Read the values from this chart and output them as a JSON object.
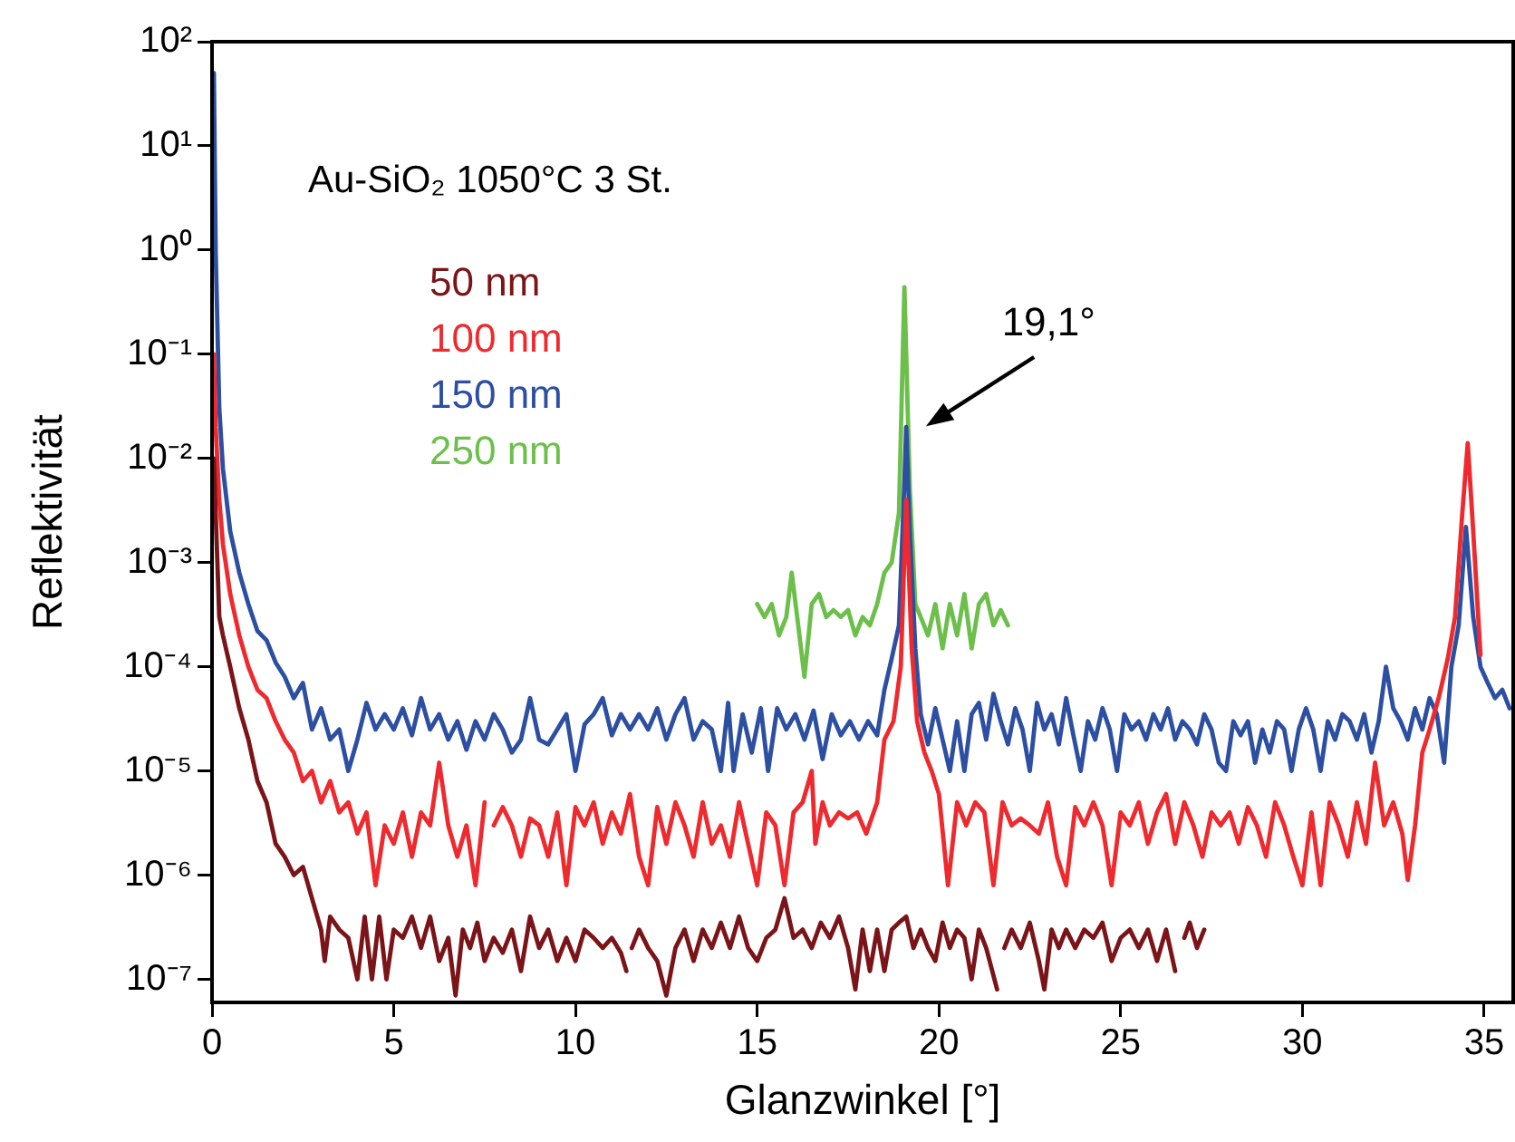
{
  "chart_data": {
    "type": "line",
    "title": "Au-SiO₂ 1050°C 3 St.",
    "xlabel": "Glanzwinkel [°]",
    "ylabel": "Reflektivität",
    "log": "y",
    "grid": false,
    "legend": "top left",
    "marker": "none",
    "line_style": "solid",
    "xlim": [
      0,
      35.8
    ],
    "xticks": [
      0,
      5,
      10,
      15,
      20,
      25,
      30,
      35
    ],
    "ylim": [
      6.4e-08,
      100
    ],
    "yticks": [
      {
        "value": 1e-07,
        "label": "10⁻⁷"
      },
      {
        "value": 1e-06,
        "label": "10⁻⁶"
      },
      {
        "value": 1e-05,
        "label": "10⁻⁵"
      },
      {
        "value": 0.0001,
        "label": "10⁻⁴"
      },
      {
        "value": 0.001,
        "label": "10⁻³"
      },
      {
        "value": 0.01,
        "label": "10⁻²"
      },
      {
        "value": 0.1,
        "label": "10⁻¹"
      },
      {
        "value": 1,
        "label": "10⁰"
      },
      {
        "value": 10,
        "label": "10¹"
      },
      {
        "value": 100,
        "label": "10²"
      }
    ],
    "annotations": [
      "19,1°"
    ],
    "series": [
      {
        "name": "50 nm",
        "color": "#7a1418",
        "x": [
          0.05,
          0.1,
          0.2,
          0.3,
          0.5,
          0.75,
          1,
          1.25,
          1.5,
          1.75,
          2,
          2.25,
          2.5,
          2.75,
          3,
          3.1,
          3.25,
          3.5,
          3.75,
          4,
          4.2,
          4.4,
          4.6,
          4.8,
          5,
          5.25,
          5.5,
          5.75,
          6,
          6.25,
          6.5,
          6.7,
          6.9,
          7.1,
          7.3,
          7.5,
          7.75,
          8,
          8.25,
          8.5,
          8.75,
          9,
          9.25,
          9.5,
          9.75,
          10,
          10.25,
          10.5,
          10.75,
          11,
          11.25,
          11.4,
          11.45,
          11.55,
          11.75,
          12,
          12.25,
          12.5,
          12.75,
          13,
          13.25,
          13.5,
          13.75,
          14,
          14.25,
          14.5,
          14.75,
          15,
          15.25,
          15.5,
          15.75,
          16,
          16.25,
          16.5,
          16.75,
          17,
          17.25,
          17.5,
          17.7,
          17.9,
          18.1,
          18.3,
          18.5,
          18.7,
          18.9,
          19.1,
          19.3,
          19.5,
          19.7,
          19.9,
          20.1,
          20.3,
          20.5,
          20.7,
          20.9,
          21.1,
          21.3,
          21.6,
          21.7,
          21.8,
          22,
          22.25,
          22.5,
          22.75,
          22.9,
          23.1,
          23.3,
          23.5,
          23.75,
          24,
          24.25,
          24.5,
          24.75,
          25,
          25.25,
          25.5,
          25.75,
          26,
          26.25,
          26.5,
          26.6,
          26.75,
          26.9,
          27.1,
          27.3
        ],
        "values": [
          0.01,
          0.003,
          0.0003,
          0.0002,
          0.0001,
          4e-05,
          2e-05,
          8e-06,
          5e-06,
          2e-06,
          1.5e-06,
          1e-06,
          1.2e-06,
          6e-07,
          3e-07,
          1.5e-07,
          4e-07,
          3e-07,
          2.5e-07,
          1e-07,
          4e-07,
          1e-07,
          4e-07,
          1e-07,
          3e-07,
          2.5e-07,
          4e-07,
          2e-07,
          4e-07,
          1.5e-07,
          2.5e-07,
          7e-08,
          3e-07,
          2e-07,
          3.5e-07,
          1.5e-07,
          2.5e-07,
          1.8e-07,
          3e-07,
          1.2e-07,
          4e-07,
          2e-07,
          3e-07,
          1.5e-07,
          2.5e-07,
          1.5e-07,
          3e-07,
          2.5e-07,
          2e-07,
          2.5e-07,
          1.8e-07,
          1.2e-07,
          null,
          2e-07,
          3e-07,
          2e-07,
          1.5e-07,
          7e-08,
          2e-07,
          3e-07,
          1.5e-07,
          3e-07,
          2e-07,
          3.5e-07,
          2e-07,
          4e-07,
          2e-07,
          1.5e-07,
          2.5e-07,
          3e-07,
          6e-07,
          2.5e-07,
          3e-07,
          2e-07,
          3.5e-07,
          2.5e-07,
          4e-07,
          2e-07,
          8e-08,
          3e-07,
          1.2e-07,
          3e-07,
          1.2e-07,
          3e-07,
          3.5e-07,
          4e-07,
          2e-07,
          3e-07,
          2e-07,
          1.5e-07,
          3.5e-07,
          2e-07,
          3e-07,
          2.5e-07,
          1e-07,
          3e-07,
          2e-07,
          8e-08,
          null,
          2e-07,
          3e-07,
          2e-07,
          3.5e-07,
          1.5e-07,
          8e-08,
          3e-07,
          2e-07,
          3e-07,
          2e-07,
          3e-07,
          2.5e-07,
          3.5e-07,
          1.5e-07,
          2.5e-07,
          3e-07,
          2e-07,
          3e-07,
          1.5e-07,
          3e-07,
          1.2e-07,
          null,
          2.5e-07,
          3.5e-07,
          2e-07,
          3e-07
        ]
      },
      {
        "name": "100 nm",
        "color": "#ee2a2e",
        "x": [
          0.05,
          0.1,
          0.2,
          0.3,
          0.5,
          0.75,
          1,
          1.25,
          1.5,
          1.75,
          2,
          2.25,
          2.5,
          2.75,
          3,
          3.25,
          3.5,
          3.75,
          4,
          4.25,
          4.5,
          4.75,
          5,
          5.25,
          5.5,
          5.75,
          6,
          6.25,
          6.5,
          6.75,
          7,
          7.25,
          7.5,
          7.6,
          7.75,
          8,
          8.25,
          8.5,
          8.75,
          9,
          9.25,
          9.5,
          9.75,
          10,
          10.25,
          10.5,
          10.75,
          11,
          11.25,
          11.5,
          11.75,
          12,
          12.25,
          12.5,
          12.75,
          13,
          13.25,
          13.5,
          13.75,
          14,
          14.25,
          14.5,
          14.75,
          15,
          15.25,
          15.5,
          15.75,
          16,
          16.25,
          16.5,
          16.6,
          16.8,
          17,
          17.25,
          17.5,
          17.75,
          18,
          18.3,
          18.5,
          18.75,
          18.95,
          19.1,
          19.25,
          19.4,
          19.6,
          19.8,
          20,
          20.25,
          20.5,
          20.75,
          21,
          21.25,
          21.5,
          21.75,
          22,
          22.25,
          22.5,
          22.75,
          23,
          23.25,
          23.5,
          23.75,
          24,
          24.25,
          24.5,
          24.75,
          25,
          25.25,
          25.5,
          25.75,
          26,
          26.25,
          26.5,
          26.75,
          27,
          27.25,
          27.5,
          27.75,
          28,
          28.25,
          28.5,
          28.75,
          29,
          29.25,
          29.5,
          29.75,
          30,
          30.25,
          30.5,
          30.75,
          31,
          31.25,
          31.5,
          31.75,
          32,
          32.25,
          32.5,
          32.75,
          32.9,
          33.1,
          33.3,
          33.5,
          33.75,
          34,
          34.2,
          34.4,
          34.55,
          34.7,
          34.9
        ],
        "values": [
          0.1,
          0.02,
          0.004,
          0.0015,
          0.0005,
          0.0002,
          0.0001,
          6e-05,
          5e-05,
          3e-05,
          2e-05,
          1.5e-05,
          8e-06,
          1e-05,
          5e-06,
          8e-06,
          4e-06,
          5e-06,
          2.5e-06,
          4e-06,
          8e-07,
          3e-06,
          2e-06,
          4e-06,
          1.5e-06,
          4e-06,
          3e-06,
          1.2e-05,
          3e-06,
          1.5e-06,
          3e-06,
          8e-07,
          5e-06,
          null,
          3e-06,
          4.5e-06,
          3e-06,
          1.5e-06,
          3.5e-06,
          3e-06,
          1.5e-06,
          4e-06,
          8e-07,
          4.5e-06,
          3e-06,
          5e-06,
          2e-06,
          4e-06,
          2.5e-06,
          6e-06,
          1.5e-06,
          8e-07,
          4.5e-06,
          2e-06,
          5e-06,
          3e-06,
          1.5e-06,
          5e-06,
          2e-06,
          3e-06,
          1.5e-06,
          5e-06,
          2e-06,
          8e-07,
          4e-06,
          3e-06,
          8e-07,
          4e-06,
          5e-06,
          1e-05,
          2e-06,
          5e-06,
          3e-06,
          4e-06,
          3.5e-06,
          4e-06,
          2.5e-06,
          5e-06,
          2e-05,
          3e-05,
          0.0001,
          0.004,
          0.00015,
          3e-05,
          1.5e-05,
          1e-05,
          6e-06,
          8e-07,
          5e-06,
          3e-06,
          5e-06,
          4e-06,
          8e-07,
          5e-06,
          3e-06,
          3.5e-06,
          3e-06,
          2.5e-06,
          5e-06,
          1.5e-06,
          8e-07,
          4.5e-06,
          3e-06,
          5e-06,
          3e-06,
          8e-07,
          4e-06,
          3e-06,
          5e-06,
          2e-06,
          4e-06,
          6e-06,
          2e-06,
          5e-06,
          3e-06,
          1.5e-06,
          4e-06,
          3e-06,
          4e-06,
          2e-06,
          4.5e-06,
          3e-06,
          1.5e-06,
          5e-06,
          3e-06,
          1.5e-06,
          8e-07,
          4e-06,
          8e-07,
          5e-06,
          3e-06,
          1.5e-06,
          5e-06,
          2e-06,
          1.2e-05,
          3e-06,
          5e-06,
          2.5e-06,
          9e-07,
          3e-06,
          1.5e-05,
          2.5e-05,
          5e-05,
          0.00012,
          0.0003,
          0.003,
          0.014,
          0.002,
          0.00013
        ]
      },
      {
        "name": "150 nm",
        "color": "#2d4fa2",
        "x": [
          0.05,
          0.1,
          0.2,
          0.3,
          0.5,
          0.75,
          1,
          1.25,
          1.5,
          1.75,
          2,
          2.25,
          2.5,
          2.75,
          3,
          3.25,
          3.5,
          3.75,
          4,
          4.25,
          4.5,
          4.75,
          5,
          5.25,
          5.5,
          5.75,
          6,
          6.25,
          6.5,
          6.75,
          7,
          7.25,
          7.5,
          7.75,
          8,
          8.25,
          8.5,
          8.75,
          9,
          9.25,
          9.5,
          9.75,
          10,
          10.25,
          10.5,
          10.75,
          11,
          11.25,
          11.5,
          11.75,
          12,
          12.25,
          12.5,
          12.75,
          13,
          13.25,
          13.5,
          13.75,
          14,
          14.2,
          14.35,
          14.6,
          14.85,
          15.1,
          15.3,
          15.55,
          15.8,
          16.05,
          16.3,
          16.55,
          16.8,
          17.05,
          17.3,
          17.55,
          17.8,
          18.05,
          18.3,
          18.5,
          18.7,
          18.9,
          19.05,
          19.1,
          19.2,
          19.35,
          19.5,
          19.7,
          19.9,
          20.1,
          20.3,
          20.5,
          20.7,
          20.9,
          21.1,
          21.3,
          21.5,
          21.7,
          21.9,
          22.1,
          22.3,
          22.5,
          22.7,
          22.9,
          23.1,
          23.3,
          23.5,
          23.7,
          23.9,
          24.1,
          24.3,
          24.5,
          24.7,
          24.9,
          25.1,
          25.3,
          25.5,
          25.7,
          25.9,
          26.1,
          26.3,
          26.5,
          26.7,
          26.9,
          27.1,
          27.3,
          27.5,
          27.7,
          27.9,
          28.1,
          28.3,
          28.5,
          28.7,
          28.9,
          29.1,
          29.3,
          29.5,
          29.7,
          29.9,
          30.1,
          30.3,
          30.5,
          30.7,
          30.9,
          31.1,
          31.3,
          31.5,
          31.7,
          31.9,
          32.1,
          32.3,
          32.5,
          32.7,
          32.9,
          33.1,
          33.3,
          33.5,
          33.7,
          33.9,
          34.1,
          34.3,
          34.5,
          34.7,
          34.9,
          35.1,
          35.3,
          35.5,
          35.7
        ],
        "values": [
          50,
          1,
          0.03,
          0.008,
          0.002,
          0.0008,
          0.0004,
          0.00022,
          0.00018,
          0.00011,
          8e-05,
          5e-05,
          7e-05,
          2.5e-05,
          4e-05,
          2e-05,
          2.5e-05,
          1e-05,
          2e-05,
          4.5e-05,
          2.5e-05,
          3.5e-05,
          2.5e-05,
          4e-05,
          2.2e-05,
          5e-05,
          2.5e-05,
          3.5e-05,
          2e-05,
          3e-05,
          1.6e-05,
          3e-05,
          2e-05,
          3.5e-05,
          2.5e-05,
          1.5e-05,
          2e-05,
          5e-05,
          2e-05,
          1.8e-05,
          2.5e-05,
          3.5e-05,
          1e-05,
          2.8e-05,
          3.5e-05,
          5e-05,
          2.2e-05,
          3.5e-05,
          2.5e-05,
          3.5e-05,
          2.5e-05,
          4e-05,
          2e-05,
          3.5e-05,
          5e-05,
          2e-05,
          3e-05,
          2.5e-05,
          1e-05,
          4.5e-05,
          1e-05,
          3.5e-05,
          1.5e-05,
          4e-05,
          1e-05,
          4e-05,
          2.5e-05,
          3.5e-05,
          2e-05,
          3.8e-05,
          1.3e-05,
          3.5e-05,
          2.2e-05,
          3e-05,
          2e-05,
          3e-05,
          2.2e-05,
          6e-05,
          0.00012,
          0.00025,
          0.006,
          0.02,
          0.002,
          0.00015,
          3.5e-05,
          1.8e-05,
          4e-05,
          2e-05,
          1e-05,
          3e-05,
          1e-05,
          3.5e-05,
          4.5e-05,
          2e-05,
          5.5e-05,
          3e-05,
          1.8e-05,
          4e-05,
          2.5e-05,
          1e-05,
          4.5e-05,
          2.5e-05,
          3.5e-05,
          1.8e-05,
          5e-05,
          2.2e-05,
          1e-05,
          3e-05,
          2e-05,
          4e-05,
          2.5e-05,
          1e-05,
          3.5e-05,
          2.5e-05,
          3e-05,
          2e-05,
          3.5e-05,
          2.5e-05,
          4e-05,
          2e-05,
          3e-05,
          2.5e-05,
          1.8e-05,
          3.5e-05,
          2.5e-05,
          1.2e-05,
          1e-05,
          3e-05,
          2.2e-05,
          3e-05,
          1.2e-05,
          2.5e-05,
          1.5e-05,
          3e-05,
          2.5e-05,
          1e-05,
          2.5e-05,
          4e-05,
          2.5e-05,
          1e-05,
          3e-05,
          2e-05,
          3.5e-05,
          3e-05,
          2e-05,
          3.5e-05,
          1.5e-05,
          3e-05,
          0.0001,
          4e-05,
          3e-05,
          2e-05,
          4e-05,
          2.5e-05,
          5e-05,
          3.5e-05,
          1.2e-05,
          0.0001,
          0.00025,
          0.0022,
          0.0003,
          0.0001,
          7e-05,
          5e-05,
          6e-05,
          4e-05
        ]
      },
      {
        "name": "250 nm",
        "color": "#6cbf4a",
        "x": [
          15,
          15.2,
          15.4,
          15.6,
          15.8,
          15.95,
          16.1,
          16.3,
          16.5,
          16.7,
          16.9,
          17.1,
          17.3,
          17.5,
          17.7,
          17.9,
          18.1,
          18.3,
          18.5,
          18.7,
          18.9,
          19.05,
          19.2,
          19.35,
          19.5,
          19.7,
          19.9,
          20.1,
          20.3,
          20.5,
          20.7,
          20.9,
          21.1,
          21.3,
          21.5,
          21.7,
          21.9
        ],
        "values": [
          0.0004,
          0.0003,
          0.0004,
          0.0002,
          0.0003,
          0.0008,
          0.0003,
          8e-05,
          0.0004,
          0.0005,
          0.0003,
          0.00035,
          0.0003,
          0.00035,
          0.0002,
          0.0003,
          0.00025,
          0.0004,
          0.0008,
          0.001,
          0.003,
          0.44,
          0.005,
          0.0004,
          0.0003,
          0.0002,
          0.0004,
          0.00015,
          0.0004,
          0.0002,
          0.0005,
          0.00015,
          0.0004,
          0.0005,
          0.00025,
          0.00035,
          0.00025
        ]
      }
    ]
  }
}
